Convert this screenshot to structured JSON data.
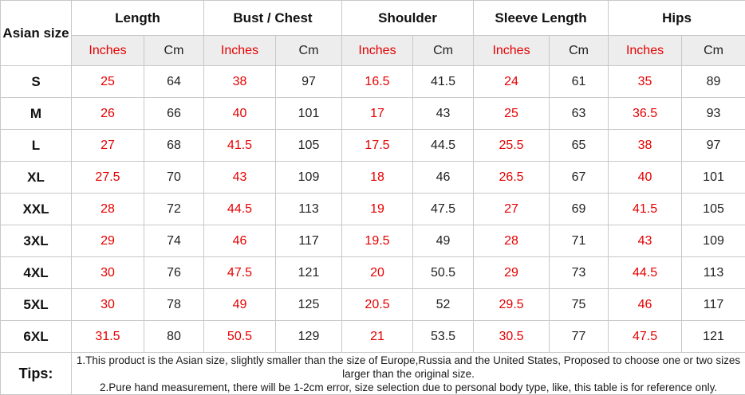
{
  "table": {
    "corner_header": "Asian size",
    "columns": [
      {
        "label": "Length"
      },
      {
        "label": "Bust / Chest"
      },
      {
        "label": "Shoulder"
      },
      {
        "label": "Sleeve Length"
      },
      {
        "label": "Hips"
      }
    ],
    "unit_labels": {
      "inches": "Inches",
      "cm": "Cm"
    },
    "rows": [
      {
        "size": "S",
        "values": [
          "25",
          "64",
          "38",
          "97",
          "16.5",
          "41.5",
          "24",
          "61",
          "35",
          "89"
        ]
      },
      {
        "size": "M",
        "values": [
          "26",
          "66",
          "40",
          "101",
          "17",
          "43",
          "25",
          "63",
          "36.5",
          "93"
        ]
      },
      {
        "size": "L",
        "values": [
          "27",
          "68",
          "41.5",
          "105",
          "17.5",
          "44.5",
          "25.5",
          "65",
          "38",
          "97"
        ]
      },
      {
        "size": "XL",
        "values": [
          "27.5",
          "70",
          "43",
          "109",
          "18",
          "46",
          "26.5",
          "67",
          "40",
          "101"
        ]
      },
      {
        "size": "XXL",
        "values": [
          "28",
          "72",
          "44.5",
          "113",
          "19",
          "47.5",
          "27",
          "69",
          "41.5",
          "105"
        ]
      },
      {
        "size": "3XL",
        "values": [
          "29",
          "74",
          "46",
          "117",
          "19.5",
          "49",
          "28",
          "71",
          "43",
          "109"
        ]
      },
      {
        "size": "4XL",
        "values": [
          "30",
          "76",
          "47.5",
          "121",
          "20",
          "50.5",
          "29",
          "73",
          "44.5",
          "113"
        ]
      },
      {
        "size": "5XL",
        "values": [
          "30",
          "78",
          "49",
          "125",
          "20.5",
          "52",
          "29.5",
          "75",
          "46",
          "117"
        ]
      },
      {
        "size": "6XL",
        "values": [
          "31.5",
          "80",
          "50.5",
          "129",
          "21",
          "53.5",
          "30.5",
          "77",
          "47.5",
          "121"
        ]
      }
    ],
    "tips": {
      "label": "Tips:",
      "items": [
        "1.This product is the Asian size, slightly smaller than the size of Europe,Russia and the United States, Proposed to choose one or two sizes larger than the original size.",
        "2.Pure hand measurement, there will be 1-2cm error, size selection due to personal body type, like, this table is for reference only."
      ]
    },
    "colors": {
      "accent_red": "#e60000",
      "unit_row_bg": "#ededed",
      "border": "#c8c8c8",
      "text": "#222222"
    }
  }
}
